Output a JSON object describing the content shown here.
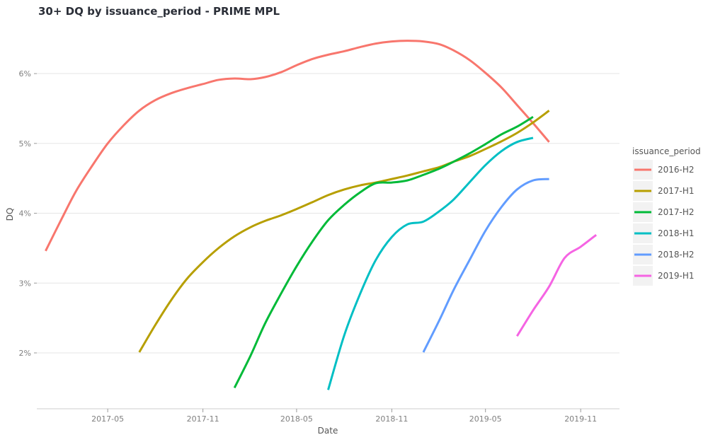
{
  "chart_data": {
    "type": "line",
    "title": "30+ DQ by issuance_period - PRIME MPL",
    "xlabel": "Date",
    "ylabel": "DQ",
    "x_axis_type": "date",
    "xlim": [
      "2016-12-15",
      "2020-01-15"
    ],
    "ylim": [
      1.2,
      6.75
    ],
    "x_ticks": [
      {
        "date": "2017-05-01",
        "label": "2017-05"
      },
      {
        "date": "2017-11-01",
        "label": "2017-11"
      },
      {
        "date": "2018-05-01",
        "label": "2018-05"
      },
      {
        "date": "2018-11-01",
        "label": "2018-11"
      },
      {
        "date": "2019-05-01",
        "label": "2019-05"
      },
      {
        "date": "2019-11-01",
        "label": "2019-11"
      }
    ],
    "y_ticks": [
      {
        "value": 2,
        "label": "2%"
      },
      {
        "value": 3,
        "label": "3%"
      },
      {
        "value": 4,
        "label": "4%"
      },
      {
        "value": 5,
        "label": "5%"
      },
      {
        "value": 6,
        "label": "6%"
      }
    ],
    "grid": true,
    "legend": {
      "title": "issuance_period",
      "position": "right"
    },
    "series": [
      {
        "name": "2016-H2",
        "color": "#F8766D",
        "points": [
          [
            "2017-01-01",
            3.46
          ],
          [
            "2017-02-01",
            3.92
          ],
          [
            "2017-03-01",
            4.32
          ],
          [
            "2017-04-01",
            4.68
          ],
          [
            "2017-05-01",
            5.0
          ],
          [
            "2017-06-01",
            5.26
          ],
          [
            "2017-07-01",
            5.47
          ],
          [
            "2017-08-01",
            5.62
          ],
          [
            "2017-09-01",
            5.72
          ],
          [
            "2017-10-01",
            5.79
          ],
          [
            "2017-11-01",
            5.85
          ],
          [
            "2017-12-01",
            5.91
          ],
          [
            "2018-01-01",
            5.93
          ],
          [
            "2018-02-01",
            5.92
          ],
          [
            "2018-03-01",
            5.95
          ],
          [
            "2018-04-01",
            6.02
          ],
          [
            "2018-05-01",
            6.12
          ],
          [
            "2018-06-01",
            6.21
          ],
          [
            "2018-07-01",
            6.27
          ],
          [
            "2018-08-01",
            6.32
          ],
          [
            "2018-09-01",
            6.38
          ],
          [
            "2018-10-01",
            6.43
          ],
          [
            "2018-11-01",
            6.46
          ],
          [
            "2018-12-01",
            6.47
          ],
          [
            "2019-01-01",
            6.46
          ],
          [
            "2019-02-01",
            6.42
          ],
          [
            "2019-03-01",
            6.33
          ],
          [
            "2019-04-01",
            6.19
          ],
          [
            "2019-05-01",
            6.01
          ],
          [
            "2019-06-01",
            5.8
          ],
          [
            "2019-07-01",
            5.55
          ],
          [
            "2019-08-01",
            5.29
          ],
          [
            "2019-09-01",
            5.02
          ]
        ]
      },
      {
        "name": "2017-H1",
        "color": "#B79F00",
        "points": [
          [
            "2017-07-01",
            2.01
          ],
          [
            "2017-08-01",
            2.4
          ],
          [
            "2017-09-01",
            2.76
          ],
          [
            "2017-10-01",
            3.06
          ],
          [
            "2017-11-01",
            3.3
          ],
          [
            "2017-12-01",
            3.5
          ],
          [
            "2018-01-01",
            3.67
          ],
          [
            "2018-02-01",
            3.8
          ],
          [
            "2018-03-01",
            3.89
          ],
          [
            "2018-04-01",
            3.97
          ],
          [
            "2018-05-01",
            4.06
          ],
          [
            "2018-06-01",
            4.16
          ],
          [
            "2018-07-01",
            4.26
          ],
          [
            "2018-08-01",
            4.34
          ],
          [
            "2018-09-01",
            4.4
          ],
          [
            "2018-10-01",
            4.44
          ],
          [
            "2018-11-01",
            4.49
          ],
          [
            "2018-12-01",
            4.54
          ],
          [
            "2019-01-01",
            4.6
          ],
          [
            "2019-02-01",
            4.66
          ],
          [
            "2019-03-01",
            4.74
          ],
          [
            "2019-04-01",
            4.82
          ],
          [
            "2019-05-01",
            4.92
          ],
          [
            "2019-06-01",
            5.03
          ],
          [
            "2019-07-01",
            5.15
          ],
          [
            "2019-08-01",
            5.3
          ],
          [
            "2019-09-01",
            5.47
          ]
        ]
      },
      {
        "name": "2017-H2",
        "color": "#00BA38",
        "points": [
          [
            "2018-01-01",
            1.5
          ],
          [
            "2018-02-01",
            1.96
          ],
          [
            "2018-03-01",
            2.42
          ],
          [
            "2018-04-01",
            2.85
          ],
          [
            "2018-05-01",
            3.24
          ],
          [
            "2018-06-01",
            3.6
          ],
          [
            "2018-07-01",
            3.9
          ],
          [
            "2018-08-01",
            4.12
          ],
          [
            "2018-09-01",
            4.3
          ],
          [
            "2018-10-01",
            4.43
          ],
          [
            "2018-11-01",
            4.44
          ],
          [
            "2018-12-01",
            4.47
          ],
          [
            "2019-01-01",
            4.55
          ],
          [
            "2019-02-01",
            4.64
          ],
          [
            "2019-03-01",
            4.74
          ],
          [
            "2019-04-01",
            4.86
          ],
          [
            "2019-05-01",
            4.99
          ],
          [
            "2019-06-01",
            5.13
          ],
          [
            "2019-07-01",
            5.24
          ],
          [
            "2019-08-01",
            5.38
          ]
        ]
      },
      {
        "name": "2018-H1",
        "color": "#00BFC4",
        "points": [
          [
            "2018-07-01",
            1.47
          ],
          [
            "2018-08-01",
            2.25
          ],
          [
            "2018-09-01",
            2.85
          ],
          [
            "2018-10-01",
            3.33
          ],
          [
            "2018-11-01",
            3.66
          ],
          [
            "2018-12-01",
            3.84
          ],
          [
            "2019-01-01",
            3.88
          ],
          [
            "2019-02-01",
            4.03
          ],
          [
            "2019-03-01",
            4.2
          ],
          [
            "2019-04-01",
            4.45
          ],
          [
            "2019-05-01",
            4.69
          ],
          [
            "2019-06-01",
            4.89
          ],
          [
            "2019-07-01",
            5.02
          ],
          [
            "2019-08-01",
            5.08
          ]
        ]
      },
      {
        "name": "2018-H2",
        "color": "#619CFF",
        "points": [
          [
            "2019-01-01",
            2.01
          ],
          [
            "2019-02-01",
            2.47
          ],
          [
            "2019-03-01",
            2.91
          ],
          [
            "2019-04-01",
            3.34
          ],
          [
            "2019-05-01",
            3.75
          ],
          [
            "2019-06-01",
            4.09
          ],
          [
            "2019-07-01",
            4.34
          ],
          [
            "2019-08-01",
            4.47
          ],
          [
            "2019-09-01",
            4.49
          ]
        ]
      },
      {
        "name": "2019-H1",
        "color": "#F564E3",
        "points": [
          [
            "2019-07-01",
            2.24
          ],
          [
            "2019-08-01",
            2.61
          ],
          [
            "2019-09-01",
            2.95
          ],
          [
            "2019-10-01",
            3.36
          ],
          [
            "2019-11-01",
            3.52
          ],
          [
            "2019-12-01",
            3.69
          ]
        ]
      }
    ]
  }
}
